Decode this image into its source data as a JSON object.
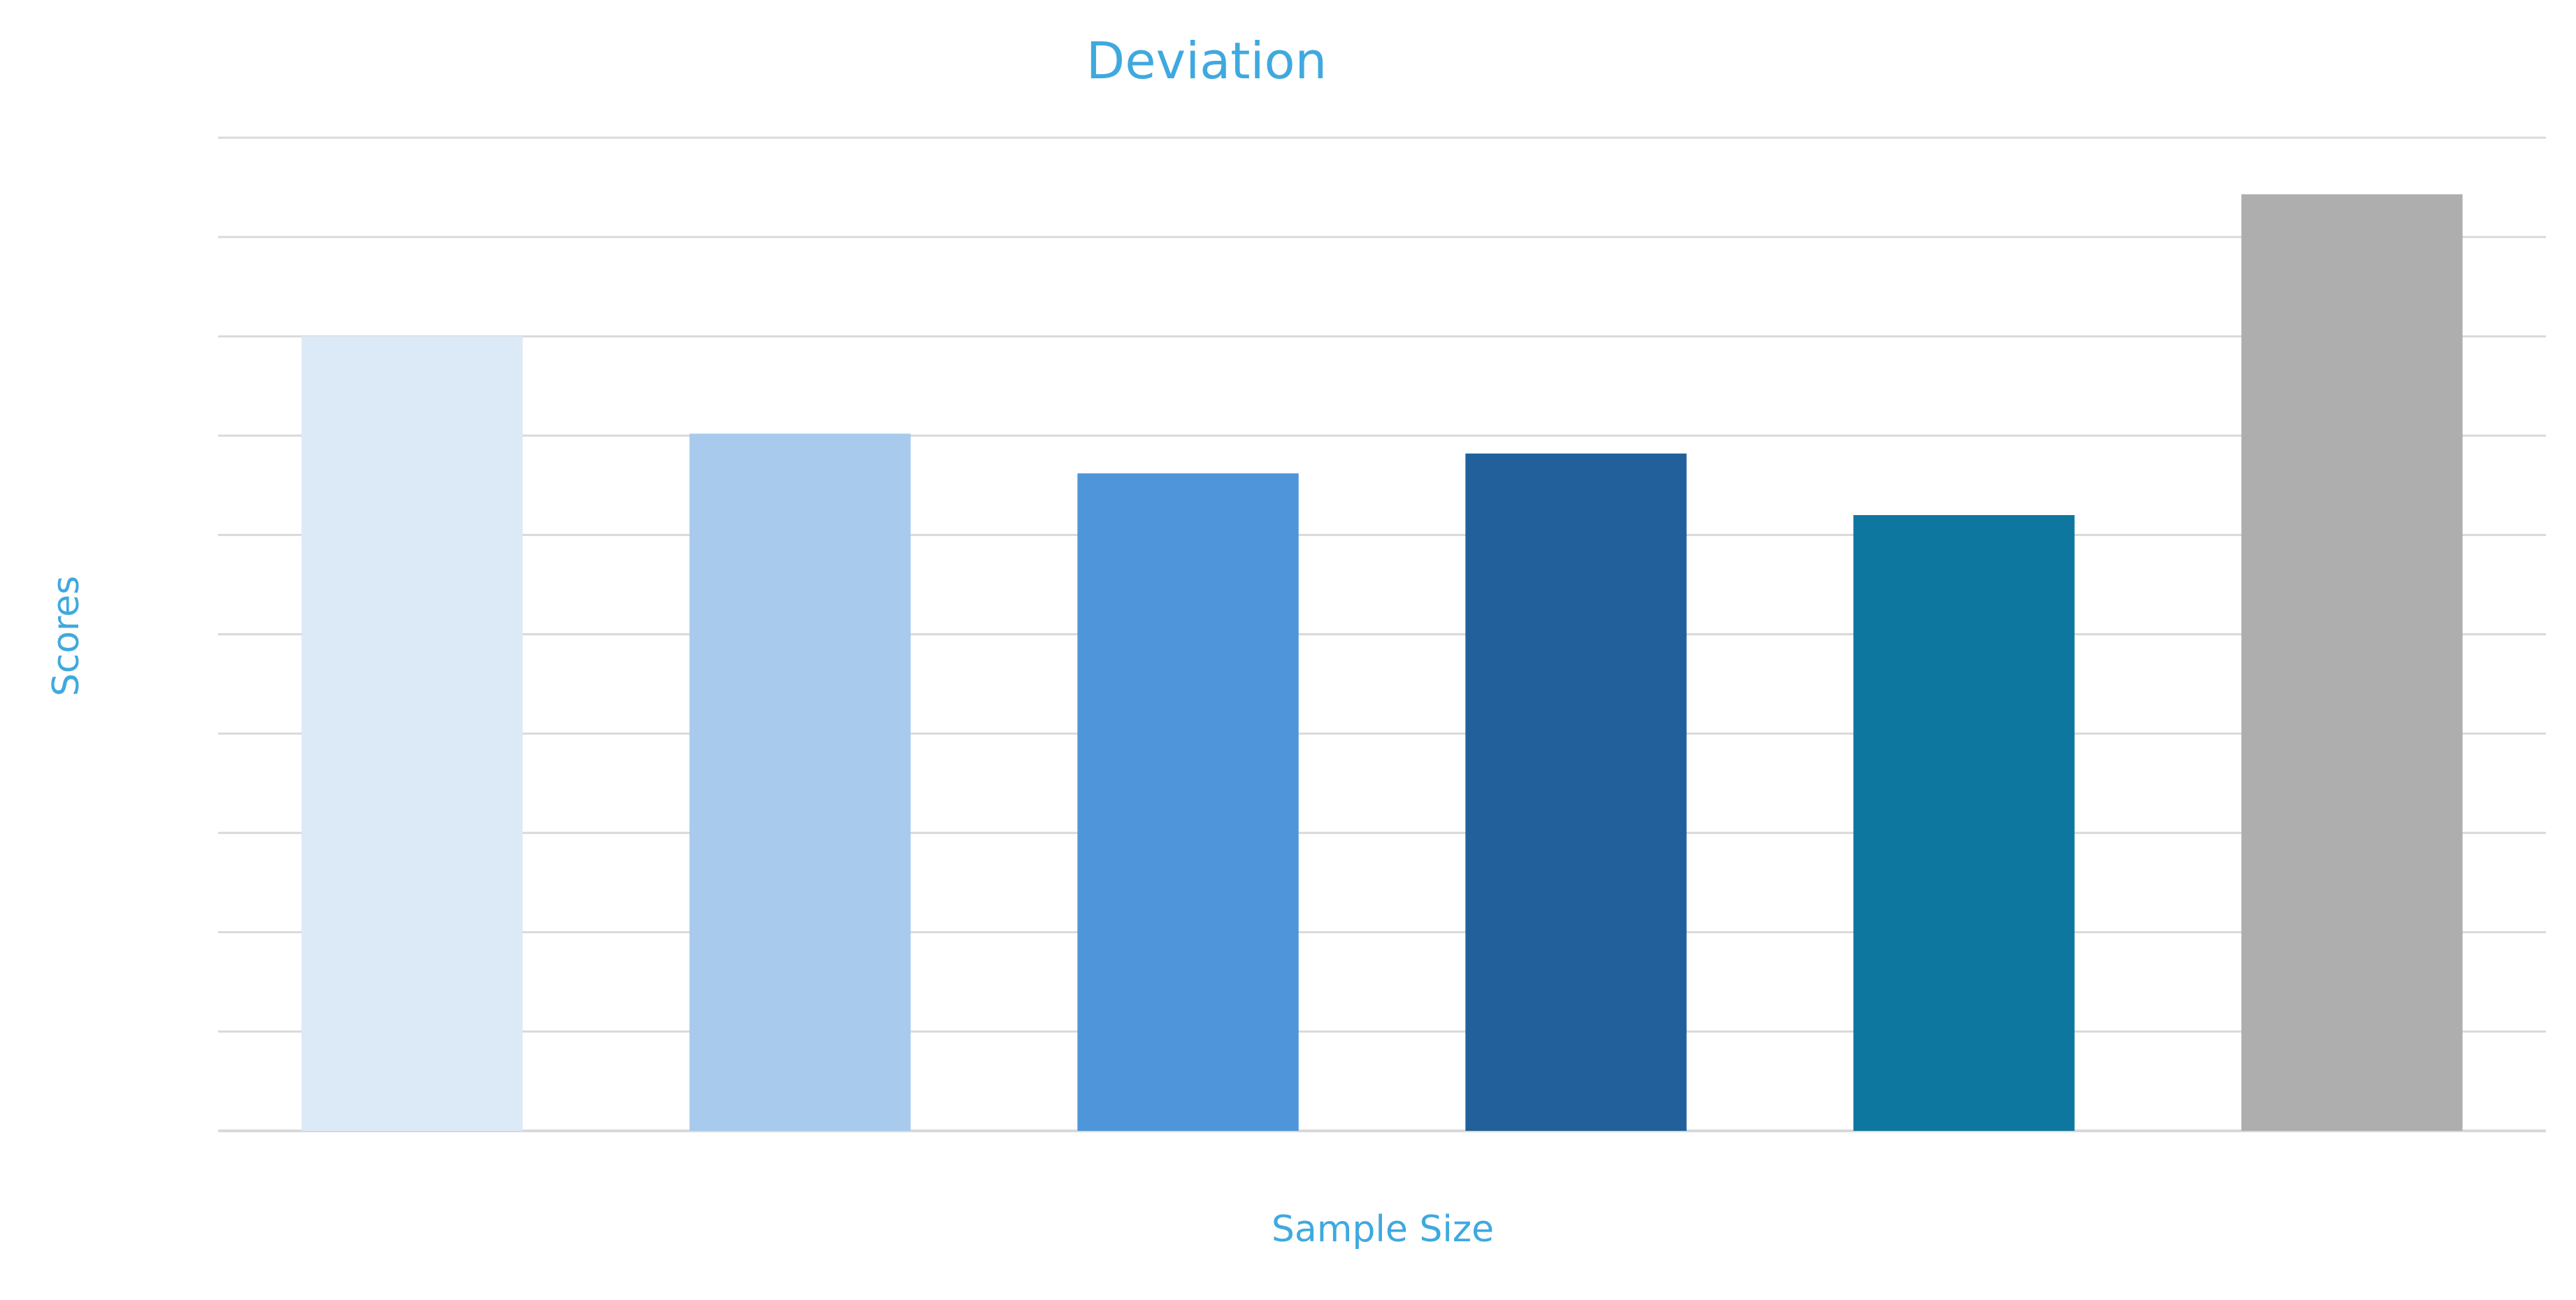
{
  "chart_data": {
    "type": "bar",
    "title": "Deviation",
    "xlabel": "Sample Size",
    "ylabel": "Scores",
    "categories": [
      "",
      "",
      "",
      "",
      "",
      ""
    ],
    "values": [
      8.0,
      7.02,
      6.62,
      6.82,
      6.2,
      9.43
    ],
    "ylim": [
      0,
      10
    ],
    "grid": true,
    "gridlines": 10,
    "colors": [
      "#dce9f6",
      "#a8caec",
      "#4f95d9",
      "#22609b",
      "#0d77a0",
      "#aeaeae"
    ],
    "text_color": "#3fa9df",
    "grid_color": "#d9d9d9"
  }
}
